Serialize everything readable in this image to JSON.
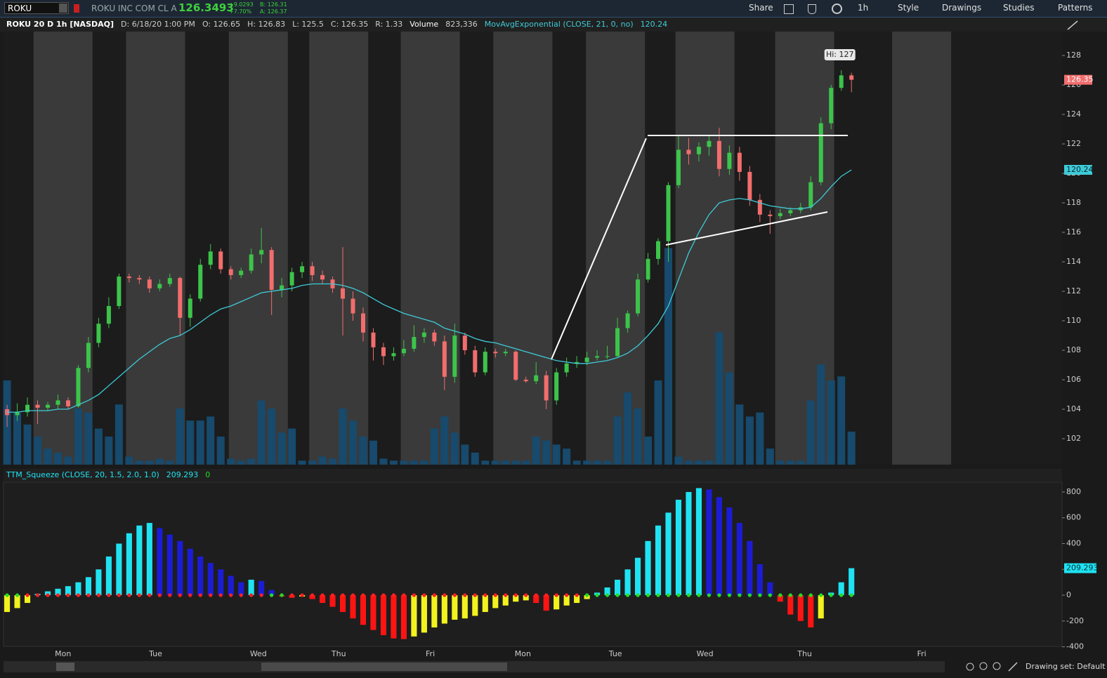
{
  "toolbar": {
    "symbol": "ROKU",
    "company": "ROKU INC COM CL A",
    "last": "126.3493",
    "change": "+9.0293",
    "change_pct": "+7.70%",
    "bid": "B: 126.31",
    "ask": "A: 126.37",
    "buttons": [
      "Share",
      "1h",
      "Style",
      "Drawings",
      "Studies",
      "Patterns"
    ]
  },
  "footer": {
    "drawing_set": "Drawing set: Default"
  },
  "chart_data": [
    {
      "type": "candlestick",
      "header": [
        "ROKU 20 D 1h [NASDAQ]",
        "D: 6/18/20 1:00 PM",
        "O: 126.65",
        "H: 126.83",
        "L: 125.5",
        "C: 126.35",
        "R: 1.33"
      ],
      "volume_title": "Volume",
      "volume_label": "823,336",
      "ema_title": "MovAvgExponential (CLOSE, 21, 0, no)",
      "hi_label": "Hi: 127",
      "up_color": "#3cc44a",
      "down_color": "#f26d6d",
      "ema_color": "#3ecbd8",
      "volume_color": "#174a6c",
      "ohlc": [
        [
          104.0,
          104.3,
          102.8,
          103.6
        ],
        [
          103.6,
          104.4,
          103.2,
          103.8
        ],
        [
          103.8,
          104.8,
          103.5,
          104.3
        ],
        [
          104.3,
          104.6,
          103.0,
          104.1
        ],
        [
          104.1,
          104.5,
          103.9,
          104.3
        ],
        [
          104.3,
          105.0,
          104.0,
          104.6
        ],
        [
          104.6,
          104.8,
          104.0,
          104.2
        ],
        [
          104.2,
          107.0,
          104.1,
          106.8
        ],
        [
          106.8,
          108.9,
          106.5,
          108.5
        ],
        [
          108.5,
          110.2,
          108.2,
          109.8
        ],
        [
          109.8,
          111.6,
          109.5,
          111.0
        ],
        [
          111.0,
          113.2,
          110.8,
          113.0
        ],
        [
          113.0,
          113.2,
          112.6,
          112.9
        ],
        [
          112.9,
          113.1,
          112.5,
          112.8
        ],
        [
          112.8,
          113.0,
          111.9,
          112.2
        ],
        [
          112.2,
          112.8,
          112.0,
          112.5
        ],
        [
          112.5,
          113.2,
          112.3,
          112.9
        ],
        [
          112.9,
          113.0,
          109.0,
          110.2
        ],
        [
          110.2,
          111.8,
          109.6,
          111.5
        ],
        [
          111.5,
          114.2,
          111.3,
          113.8
        ],
        [
          113.8,
          115.2,
          113.5,
          114.7
        ],
        [
          114.7,
          114.9,
          113.2,
          113.5
        ],
        [
          113.5,
          113.7,
          112.8,
          113.1
        ],
        [
          113.1,
          113.6,
          112.9,
          113.4
        ],
        [
          113.4,
          114.9,
          113.2,
          114.5
        ],
        [
          114.5,
          116.3,
          113.9,
          114.8
        ],
        [
          114.8,
          115.0,
          110.4,
          112.1
        ],
        [
          112.1,
          112.9,
          111.6,
          112.4
        ],
        [
          112.4,
          113.6,
          112.0,
          113.3
        ],
        [
          113.3,
          114.0,
          112.9,
          113.7
        ],
        [
          113.7,
          114.0,
          112.7,
          113.1
        ],
        [
          113.1,
          113.4,
          112.5,
          112.8
        ],
        [
          112.8,
          113.0,
          111.9,
          112.2
        ],
        [
          112.2,
          115.0,
          109.0,
          111.5
        ],
        [
          111.5,
          112.0,
          110.0,
          110.5
        ],
        [
          110.5,
          110.9,
          108.6,
          109.2
        ],
        [
          109.2,
          109.5,
          107.3,
          108.2
        ],
        [
          108.2,
          108.5,
          107.0,
          107.6
        ],
        [
          107.6,
          108.2,
          107.3,
          107.8
        ],
        [
          107.8,
          108.7,
          107.6,
          108.1
        ],
        [
          108.1,
          109.7,
          107.9,
          108.9
        ],
        [
          108.9,
          109.5,
          108.5,
          109.2
        ],
        [
          109.2,
          109.4,
          108.3,
          108.6
        ],
        [
          108.6,
          109.0,
          105.3,
          106.2
        ],
        [
          106.2,
          109.8,
          105.8,
          109.0
        ],
        [
          109.0,
          109.2,
          107.7,
          108.0
        ],
        [
          108.0,
          108.3,
          106.2,
          106.5
        ],
        [
          106.5,
          108.2,
          106.3,
          107.9
        ],
        [
          107.9,
          108.1,
          107.5,
          107.8
        ],
        [
          107.8,
          108.1,
          107.6,
          107.9
        ],
        [
          107.9,
          108.0,
          105.9,
          106.0
        ],
        [
          106.0,
          106.2,
          105.8,
          105.9
        ],
        [
          105.9,
          107.2,
          105.7,
          106.3
        ],
        [
          106.3,
          106.6,
          104.0,
          104.6
        ],
        [
          104.6,
          106.8,
          104.3,
          106.5
        ],
        [
          106.5,
          107.5,
          106.2,
          107.1
        ],
        [
          107.1,
          107.6,
          106.8,
          107.2
        ],
        [
          107.2,
          107.9,
          107.0,
          107.5
        ],
        [
          107.5,
          108.0,
          107.3,
          107.6
        ],
        [
          107.6,
          108.3,
          107.4,
          107.6
        ],
        [
          107.6,
          110.2,
          107.5,
          109.5
        ],
        [
          109.5,
          110.7,
          109.2,
          110.5
        ],
        [
          110.5,
          113.2,
          110.3,
          112.8
        ],
        [
          112.8,
          114.6,
          112.6,
          114.2
        ],
        [
          114.2,
          115.6,
          113.8,
          115.4
        ],
        [
          115.4,
          119.4,
          114.0,
          119.2
        ],
        [
          119.2,
          122.6,
          119.0,
          121.6
        ],
        [
          121.6,
          122.4,
          120.6,
          121.3
        ],
        [
          121.3,
          122.1,
          120.8,
          121.8
        ],
        [
          121.8,
          122.6,
          121.2,
          122.2
        ],
        [
          122.2,
          123.1,
          119.8,
          120.3
        ],
        [
          120.3,
          121.9,
          119.9,
          121.4
        ],
        [
          121.4,
          121.8,
          119.5,
          120.1
        ],
        [
          120.1,
          120.5,
          117.8,
          118.2
        ],
        [
          118.2,
          118.6,
          116.7,
          117.2
        ],
        [
          117.2,
          117.5,
          115.9,
          117.1
        ],
        [
          117.1,
          117.6,
          116.9,
          117.3
        ],
        [
          117.3,
          117.7,
          117.1,
          117.5
        ],
        [
          117.5,
          118.0,
          117.3,
          117.7
        ],
        [
          117.7,
          119.8,
          117.5,
          119.4
        ],
        [
          119.4,
          123.8,
          119.2,
          123.4
        ],
        [
          123.4,
          126.0,
          123.0,
          125.8
        ],
        [
          125.8,
          127.0,
          125.6,
          126.65
        ],
        [
          126.65,
          126.83,
          125.5,
          126.35
        ]
      ],
      "ema": [
        103.8,
        103.8,
        103.9,
        103.9,
        103.9,
        104.0,
        104.0,
        104.3,
        104.6,
        105.0,
        105.6,
        106.2,
        106.8,
        107.4,
        107.9,
        108.4,
        108.8,
        109.0,
        109.4,
        109.9,
        110.4,
        110.8,
        111.0,
        111.3,
        111.6,
        111.9,
        112.0,
        112.1,
        112.2,
        112.4,
        112.5,
        112.5,
        112.5,
        112.4,
        112.2,
        111.9,
        111.5,
        111.1,
        110.8,
        110.5,
        110.3,
        110.1,
        109.9,
        109.5,
        109.3,
        109.1,
        108.8,
        108.6,
        108.5,
        108.3,
        108.1,
        107.9,
        107.7,
        107.5,
        107.3,
        107.2,
        107.1,
        107.1,
        107.2,
        107.3,
        107.5,
        107.8,
        108.3,
        109.0,
        109.8,
        111.0,
        112.8,
        114.6,
        116.0,
        117.2,
        118.0,
        118.2,
        118.3,
        118.2,
        118.0,
        117.8,
        117.7,
        117.6,
        117.6,
        117.7,
        118.3,
        119.1,
        119.8,
        120.24
      ],
      "volume": [
        2100000,
        1300000,
        1000000,
        700000,
        400000,
        300000,
        200000,
        1400000,
        1300000,
        900000,
        700000,
        1500000,
        200000,
        100000,
        100000,
        150000,
        100000,
        1400000,
        1100000,
        1100000,
        1200000,
        700000,
        150000,
        100000,
        150000,
        1600000,
        1400000,
        800000,
        900000,
        100000,
        100000,
        200000,
        150000,
        1400000,
        1100000,
        700000,
        600000,
        150000,
        100000,
        100000,
        100000,
        100000,
        900000,
        1200000,
        800000,
        500000,
        300000,
        100000,
        100000,
        100000,
        100000,
        100000,
        700000,
        600000,
        500000,
        400000,
        100000,
        100000,
        100000,
        100000,
        1200000,
        1800000,
        1400000,
        700000,
        2100000,
        5400000,
        200000,
        100000,
        100000,
        100000,
        3300000,
        2300000,
        1500000,
        1200000,
        1300000,
        400000,
        100000,
        100000,
        100000,
        1600000,
        2500000,
        2100000,
        2200000,
        823336
      ],
      "volume_lim": [
        0,
        10800000
      ],
      "ylim": [
        100.24,
        129.62
      ],
      "yticks": [
        102,
        104,
        106,
        108,
        110,
        112,
        114,
        116,
        118,
        120,
        122,
        124,
        126,
        128
      ],
      "xlim": [
        -0.35,
        103.7
      ],
      "xticks": [
        {
          "value": 5.5,
          "label": "Mon"
        },
        {
          "value": 14.6,
          "label": "Tue"
        },
        {
          "value": 24.7,
          "label": "Wed"
        },
        {
          "value": 32.6,
          "label": "Thu"
        },
        {
          "value": 41.6,
          "label": "Fri"
        },
        {
          "value": 50.7,
          "label": "Mon"
        },
        {
          "value": 59.8,
          "label": "Tue"
        },
        {
          "value": 68.6,
          "label": "Wed"
        },
        {
          "value": 78.4,
          "label": "Thu"
        },
        {
          "value": 89.9,
          "label": "Fri"
        }
      ],
      "grid": false
    },
    {
      "type": "histogram",
      "title": "TTM_Squeeze (CLOSE, 20, 1.5, 2.0, 1.0)",
      "signal_label": "0",
      "colors": {
        "up_pos": "#1fe3f2",
        "down_pos": "#1c1cd6",
        "down_neg": "#ff1414",
        "up_neg": "#f2f21e",
        "dot_on": "#ff2020",
        "dot_off": "#22dd22"
      },
      "values": [
        -130,
        -100,
        -60,
        10,
        30,
        50,
        70,
        100,
        140,
        200,
        300,
        400,
        480,
        540,
        560,
        520,
        470,
        420,
        360,
        300,
        250,
        200,
        150,
        100,
        120,
        110,
        40,
        -10,
        -20,
        -10,
        -30,
        -60,
        -90,
        -130,
        -180,
        -230,
        -270,
        -310,
        -335,
        -340,
        -320,
        -290,
        -250,
        -220,
        -190,
        -180,
        -160,
        -130,
        -100,
        -80,
        -50,
        -40,
        -60,
        -120,
        -110,
        -80,
        -60,
        -30,
        20,
        60,
        120,
        200,
        290,
        420,
        540,
        640,
        740,
        800,
        830,
        820,
        760,
        680,
        560,
        420,
        240,
        100,
        -50,
        -150,
        -200,
        -250,
        -180,
        20,
        100,
        209.293
      ],
      "squeeze_dots": [
        false,
        false,
        true,
        true,
        true,
        true,
        true,
        true,
        true,
        true,
        true,
        true,
        true,
        true,
        true,
        true,
        true,
        true,
        true,
        true,
        true,
        true,
        true,
        true,
        true,
        true,
        false,
        false,
        true,
        true,
        true,
        true,
        true,
        true,
        true,
        true,
        true,
        true,
        true,
        true,
        true,
        true,
        true,
        true,
        true,
        true,
        true,
        true,
        true,
        true,
        true,
        true,
        true,
        true,
        true,
        true,
        true,
        false,
        false,
        false,
        false,
        false,
        false,
        false,
        false,
        false,
        false,
        false,
        false,
        false,
        false,
        false,
        false,
        false,
        false,
        false,
        false,
        false,
        false,
        false,
        false,
        false,
        false,
        false
      ],
      "ylim": [
        -397,
        876
      ],
      "yticks": [
        -400,
        -200,
        0,
        200,
        400,
        600,
        800
      ]
    }
  ]
}
